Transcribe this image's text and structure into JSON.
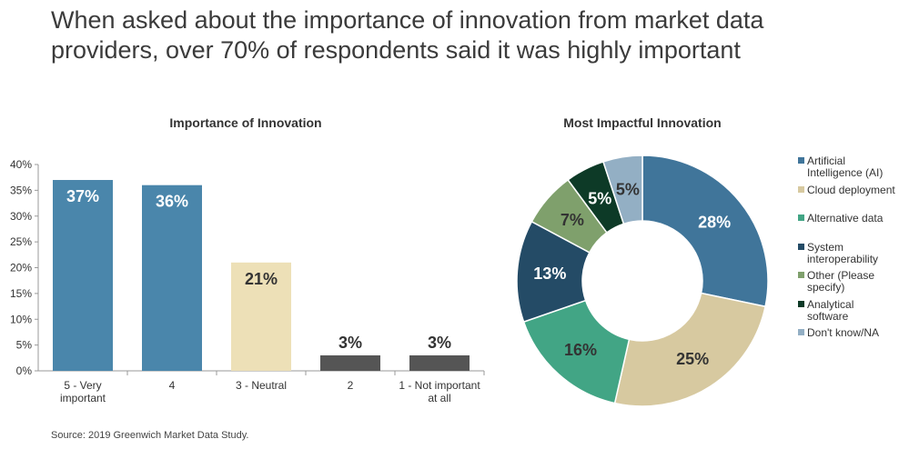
{
  "headline": "When asked about the importance of innovation from market data providers, over 70% of respondents said it was highly important",
  "footer": "Source: 2019 Greenwich Market Data Study.",
  "chart_data": [
    {
      "type": "bar",
      "title": "Importance of Innovation",
      "categories": [
        [
          "5 - Very",
          "important"
        ],
        [
          "4"
        ],
        [
          "3 - Neutral"
        ],
        [
          "2"
        ],
        [
          "1 - Not important",
          "at all"
        ]
      ],
      "values": [
        37,
        36,
        21,
        3,
        3
      ],
      "data_labels": [
        "37%",
        "36%",
        "21%",
        "3%",
        "3%"
      ],
      "colors": [
        "#4a86ab",
        "#4a86ab",
        "#ede0b7",
        "#555555",
        "#555555"
      ],
      "label_colors": [
        "#ffffff",
        "#ffffff",
        "#333333",
        "#333333",
        "#333333"
      ],
      "ylim": [
        0,
        40
      ],
      "yticks": [
        0,
        5,
        10,
        15,
        20,
        25,
        30,
        35,
        40
      ],
      "ytick_labels": [
        "0%",
        "5%",
        "10%",
        "15%",
        "20%",
        "25%",
        "30%",
        "35%",
        "40%"
      ],
      "grid": false
    },
    {
      "type": "pie",
      "donut": true,
      "title": "Most Impactful Innovation",
      "legend_position": "right",
      "slices": [
        {
          "label": [
            "Artificial",
            "Intelligence (AI)"
          ],
          "value": 28,
          "data_label": "28%",
          "color": "#40759a",
          "label_color": "#ffffff"
        },
        {
          "label": [
            "Cloud deployment"
          ],
          "value": 25,
          "data_label": "25%",
          "color": "#d7c9a0",
          "label_color": "#333333"
        },
        {
          "label": [
            "Alternative data"
          ],
          "value": 16,
          "data_label": "16%",
          "color": "#42a585",
          "label_color": "#333333"
        },
        {
          "label": [
            "System",
            "interoperability"
          ],
          "value": 13,
          "data_label": "13%",
          "color": "#244b66",
          "label_color": "#ffffff"
        },
        {
          "label": [
            "Other (Please",
            "specify)"
          ],
          "value": 7,
          "data_label": "7%",
          "color": "#7fa06c",
          "label_color": "#333333"
        },
        {
          "label": [
            "Analytical",
            "software"
          ],
          "value": 5,
          "data_label": "5%",
          "color": "#0d3a27",
          "label_color": "#ffffff"
        },
        {
          "label": [
            "Don't know/NA"
          ],
          "value": 5,
          "data_label": "5%",
          "color": "#93afc4",
          "label_color": "#333333"
        }
      ]
    }
  ]
}
